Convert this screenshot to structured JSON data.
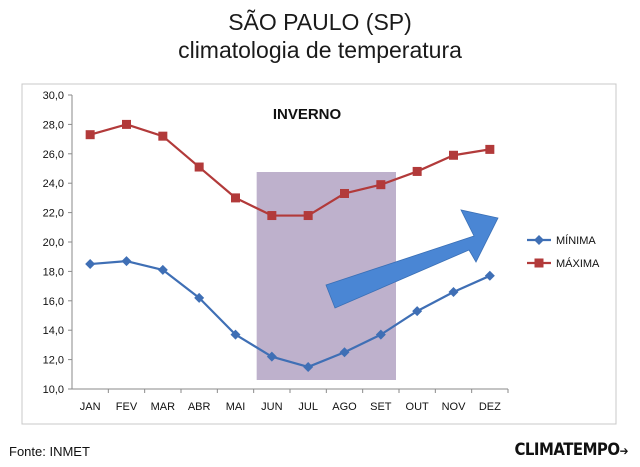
{
  "title": {
    "line1": "SÃO PAULO (SP)",
    "line2": "climatologia de temperatura"
  },
  "footer": {
    "source": "Fonte: INMET",
    "logo": "CLIMATEMPO"
  },
  "chart_data": {
    "type": "line",
    "title": "SÃO PAULO (SP) climatologia de temperatura",
    "xlabel": "",
    "ylabel": "",
    "categories": [
      "JAN",
      "FEV",
      "MAR",
      "ABR",
      "MAI",
      "JUN",
      "JUL",
      "AGO",
      "SET",
      "OUT",
      "NOV",
      "DEZ"
    ],
    "ylim": [
      10,
      30
    ],
    "yticks": [
      "10,0",
      "12,0",
      "14,0",
      "16,0",
      "18,0",
      "20,0",
      "22,0",
      "24,0",
      "26,0",
      "28,0",
      "30,0"
    ],
    "grid": false,
    "legend_position": "right",
    "series": [
      {
        "name": "MÍNIMA",
        "color": "#3f6fb5",
        "marker": "diamond",
        "values": [
          18.5,
          18.7,
          18.1,
          16.2,
          13.7,
          12.2,
          11.5,
          12.5,
          13.7,
          15.3,
          16.6,
          17.7
        ]
      },
      {
        "name": "MÁXIMA",
        "color": "#b23a3a",
        "marker": "square",
        "values": [
          27.3,
          28.0,
          27.2,
          25.1,
          23.0,
          21.8,
          21.8,
          23.3,
          23.9,
          24.8,
          25.9,
          26.3
        ]
      }
    ],
    "annotations": [
      {
        "label": "INVERNO",
        "kind": "shaded-region",
        "from_category": "JUN",
        "to_category": "SET",
        "color": "#b7a9c7"
      },
      {
        "kind": "arrow",
        "meaning": "rising temperatures",
        "color": "#4a86d4"
      }
    ]
  }
}
